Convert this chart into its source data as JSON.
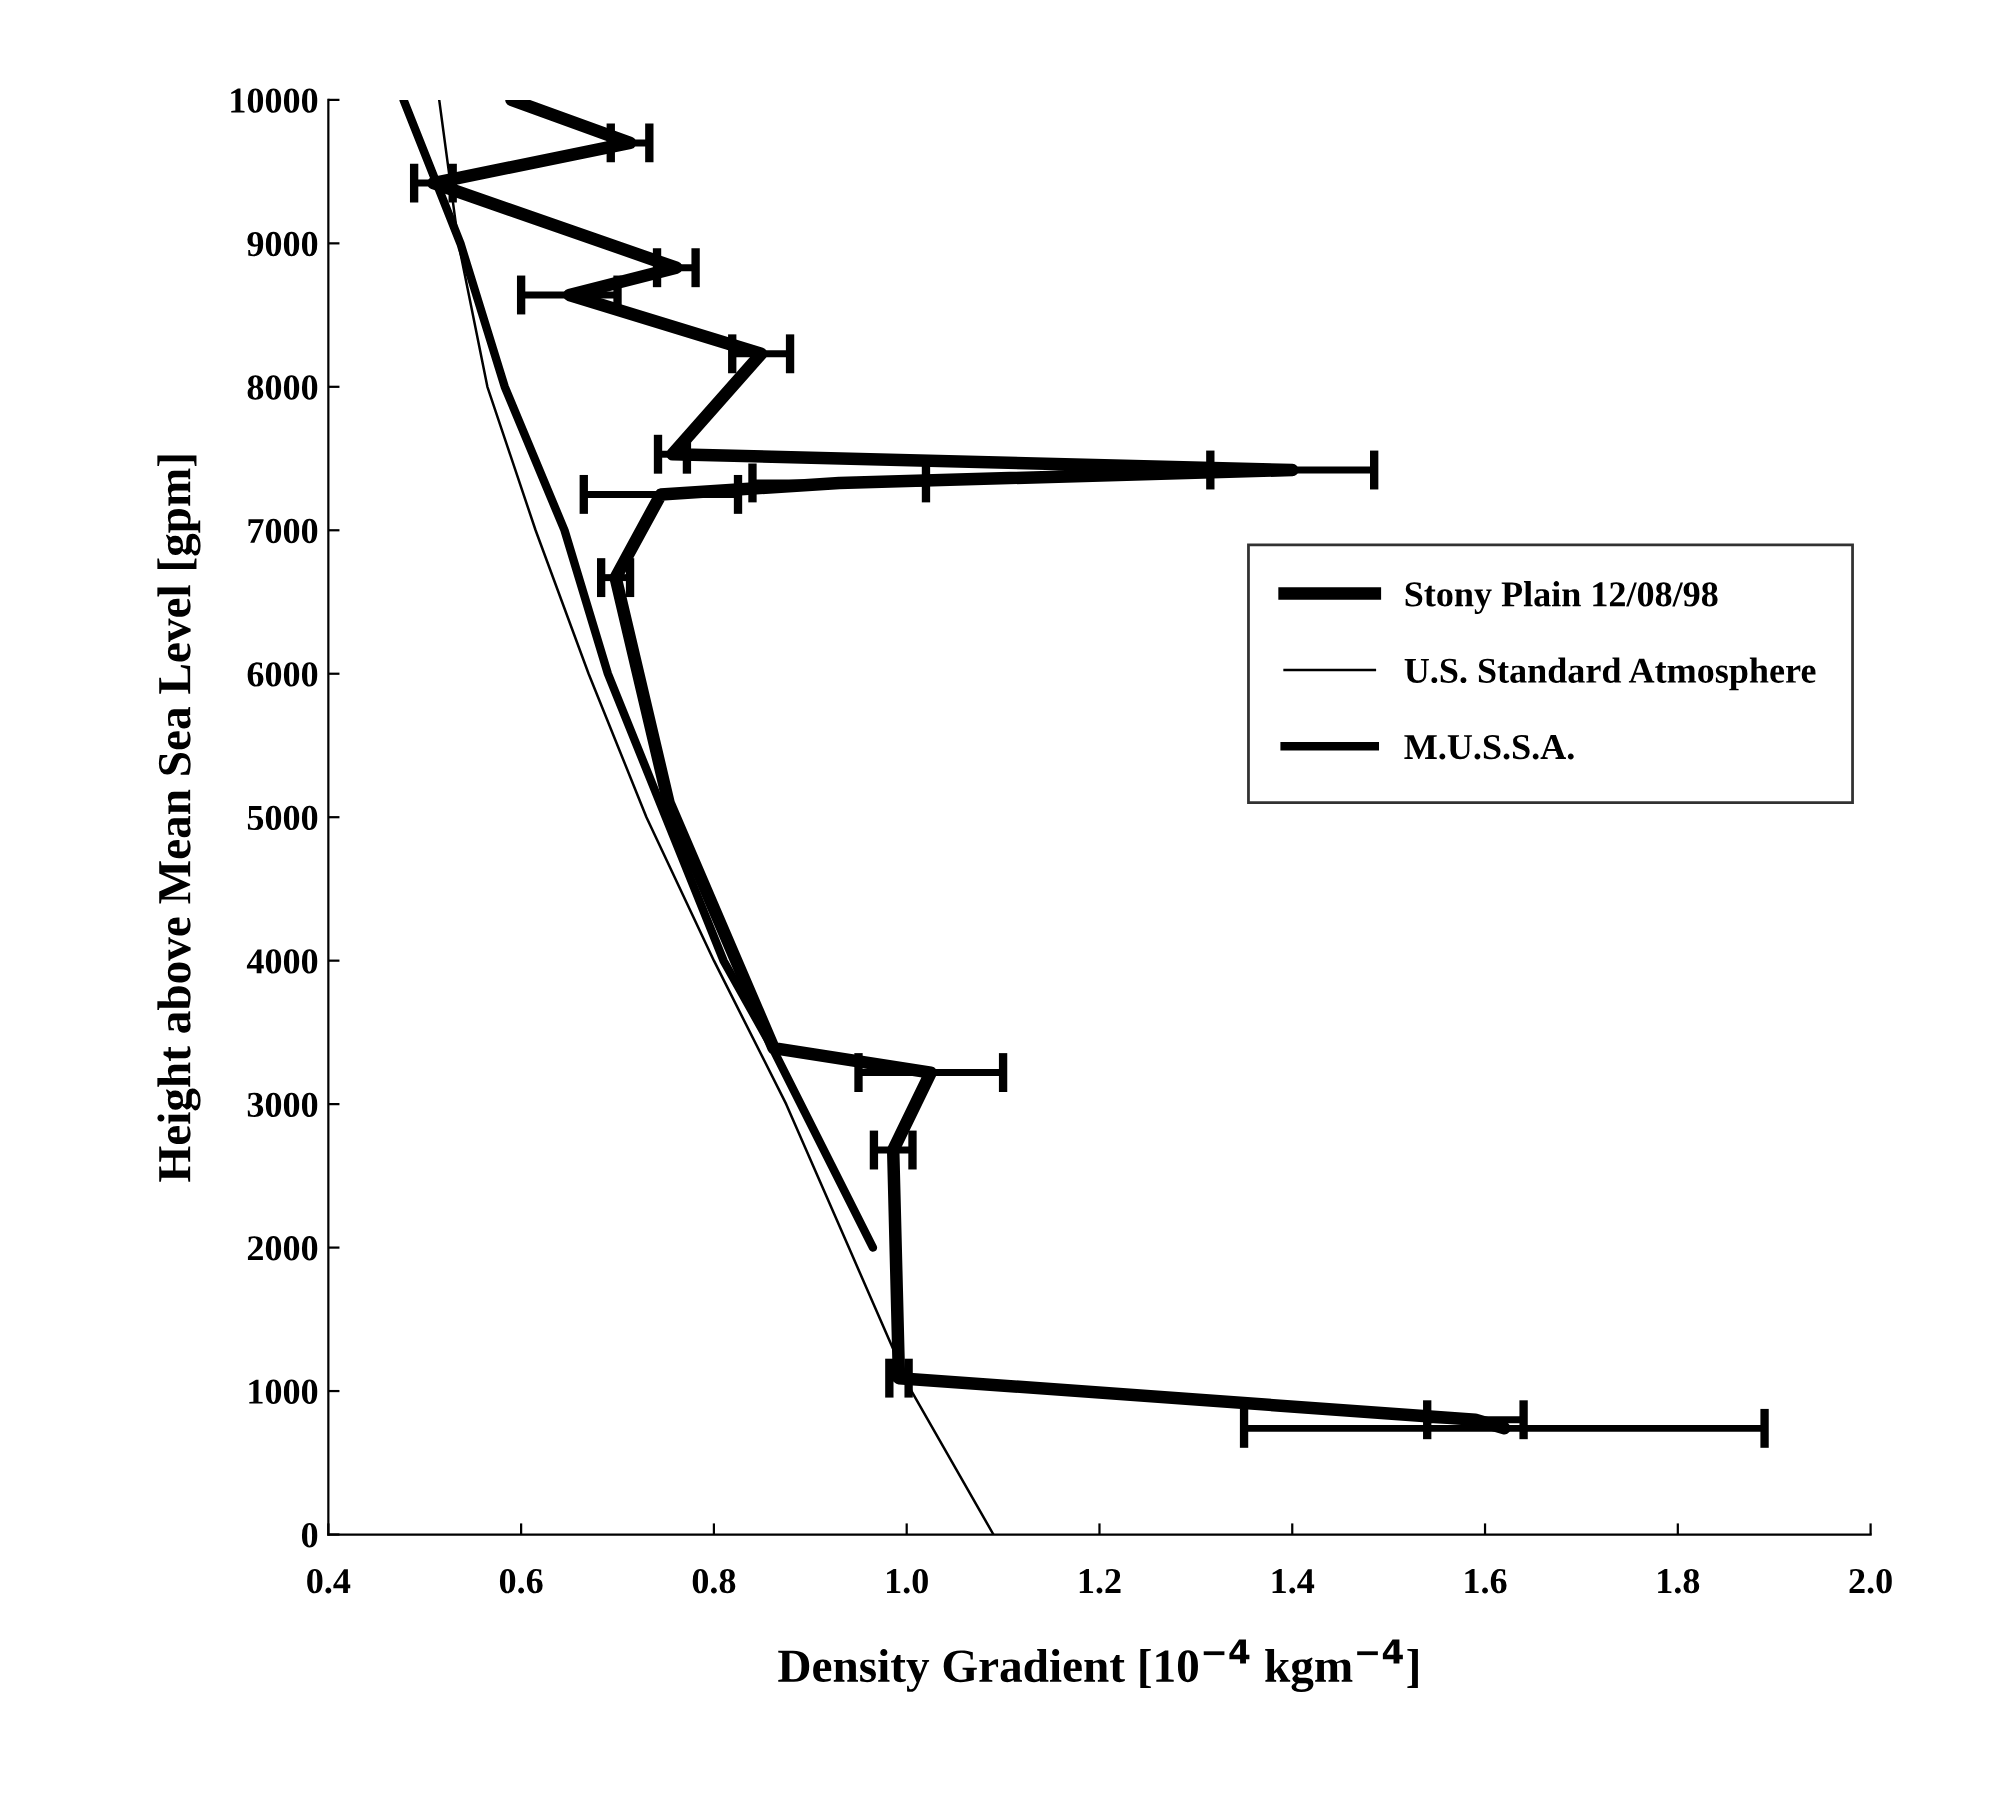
{
  "chart_data": {
    "type": "line",
    "xlabel": "Density Gradient [10$^{−4}$ kgm$^{−4}$]",
    "ylabel": "Height above Mean Sea Level [gpm]",
    "xlim": [
      0.4,
      2.0
    ],
    "xticks": [
      {
        "value": 0.4,
        "label": "0.4"
      },
      {
        "value": 0.6,
        "label": "0.6"
      },
      {
        "value": 0.8,
        "label": "0.8"
      },
      {
        "value": 1.0,
        "label": "1.0"
      },
      {
        "value": 1.2,
        "label": "1.2"
      },
      {
        "value": 1.4,
        "label": "1.4"
      },
      {
        "value": 1.6,
        "label": "1.6"
      },
      {
        "value": 1.8,
        "label": "1.8"
      },
      {
        "value": 2.0,
        "label": "2.0"
      }
    ],
    "ylim": [
      0,
      10000
    ],
    "yticks": [
      0,
      1000,
      2000,
      3000,
      4000,
      5000,
      6000,
      7000,
      8000,
      9000,
      10000
    ],
    "grid": false,
    "legend": "right",
    "marker": "none",
    "series": [
      {
        "name": "Stony Plain 12/08/98",
        "color": "#000000",
        "x": [
          0.59,
          0.713,
          0.509,
          0.761,
          0.65,
          0.849,
          0.757,
          1.4,
          0.93,
          0.745,
          0.698,
          0.753,
          0.862,
          1.025,
          0.986,
          0.992,
          1.59,
          1.62
        ],
        "values": [
          10000,
          9700,
          9420,
          8830,
          8640,
          8230,
          7530,
          7420,
          7330,
          7250,
          6670,
          5100,
          3390,
          3220,
          2680,
          1090,
          800,
          740
        ],
        "xerrors": [
          null,
          0.02,
          0.02,
          0.02,
          0.05,
          0.03,
          0.015,
          0.085,
          0.09,
          0.08,
          0.015,
          null,
          null,
          0.075,
          0.02,
          0.01,
          0.05,
          0.27
        ]
      },
      {
        "name": "U.S. Standard Atmosphere",
        "color": "#000000",
        "x": [
          0.515,
          0.535,
          0.565,
          0.615,
          0.67,
          0.73,
          0.8,
          0.875,
          0.94,
          1.005,
          1.09
        ],
        "values": [
          10000,
          9000,
          8000,
          7000,
          6000,
          5000,
          4000,
          3000,
          2000,
          1000,
          0
        ]
      },
      {
        "name": "M.U.S.S.A.",
        "color": "#000000",
        "x": [
          0.478,
          0.537,
          0.583,
          0.645,
          0.69,
          0.75,
          0.81,
          0.86,
          0.965
        ],
        "values": [
          10000,
          9000,
          8000,
          7000,
          6000,
          5000,
          4000,
          3400,
          2000
        ]
      }
    ]
  }
}
